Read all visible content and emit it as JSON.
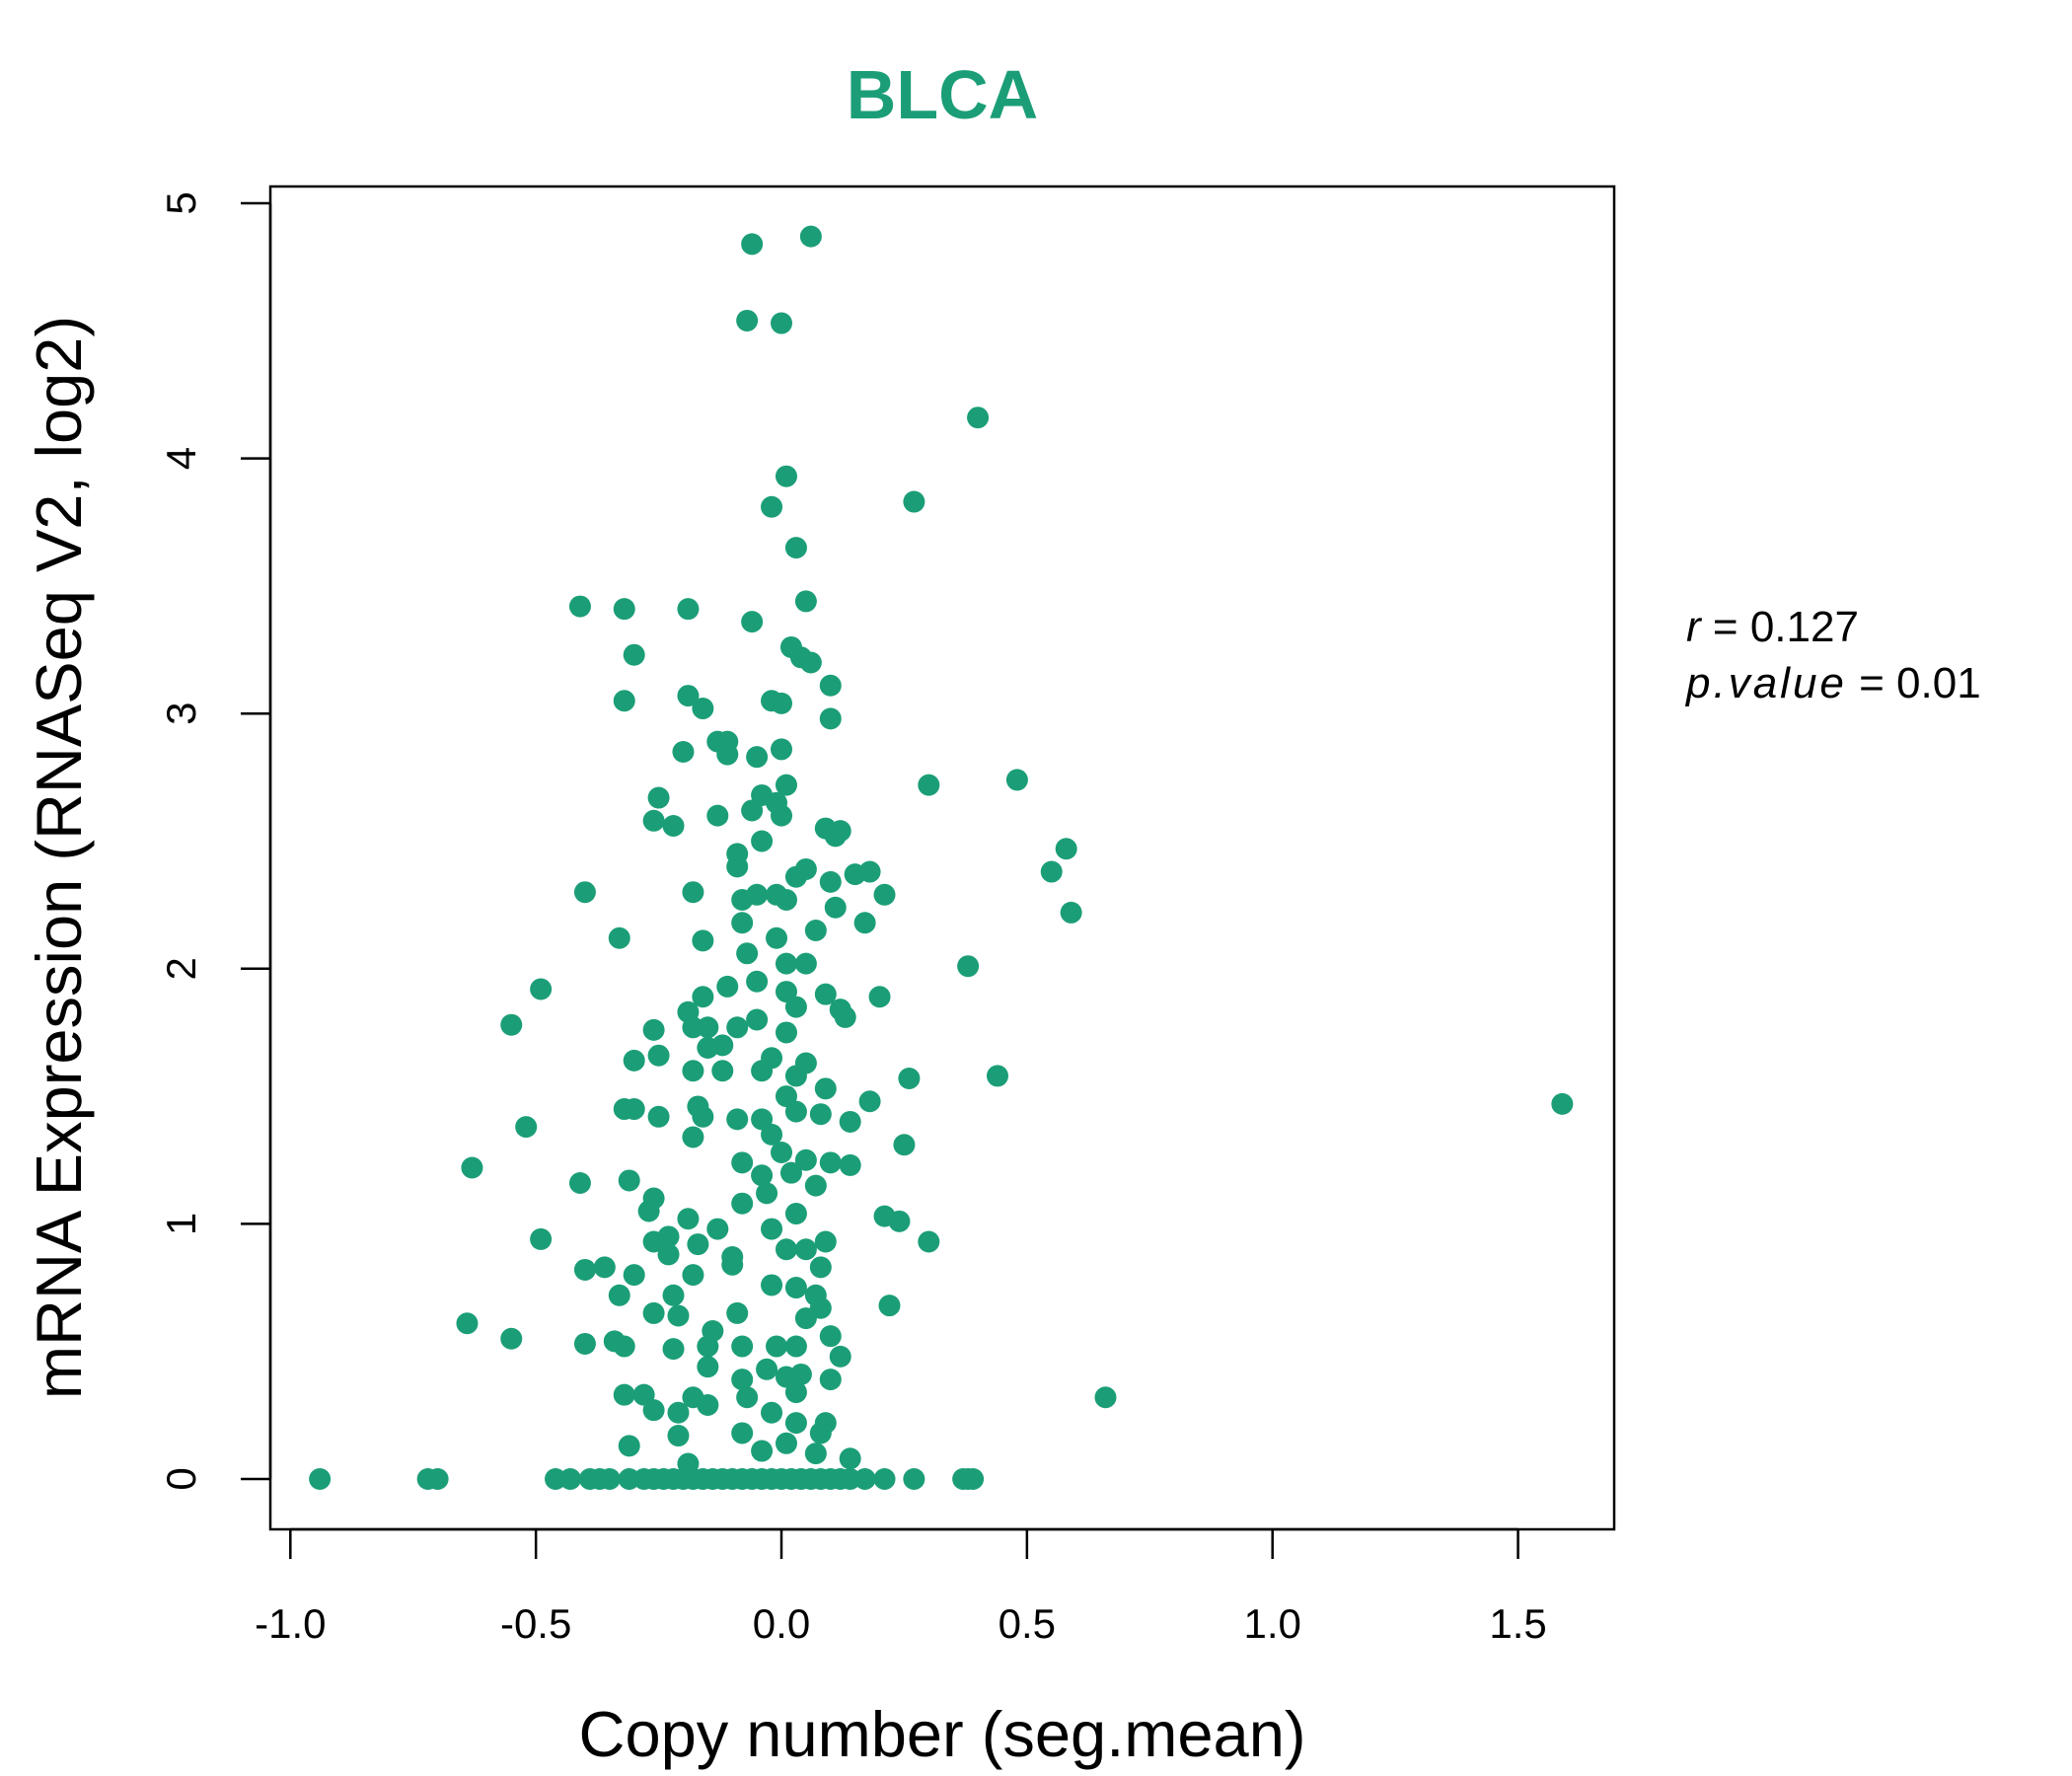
{
  "chart_data": {
    "type": "scatter",
    "title": "BLCA",
    "xlabel": "Copy number (seg.mean)",
    "ylabel": "mRNA Expression (RNASeq V2, log2)",
    "xlim": [
      -1.05,
      1.68
    ],
    "ylim": [
      -0.2,
      5.07
    ],
    "xticks": [
      -1.0,
      -0.5,
      0.0,
      0.5,
      1.0,
      1.5
    ],
    "xtick_labels": [
      "-1.0",
      "-0.5",
      "0.0",
      "0.5",
      "1.0",
      "1.5"
    ],
    "yticks": [
      0,
      1,
      2,
      3,
      4,
      5
    ],
    "ytick_labels": [
      "0",
      "1",
      "2",
      "3",
      "4",
      "5"
    ],
    "grid": false,
    "color": "#1b9e77",
    "stats": {
      "r_label": "r",
      "r_value": "0.127",
      "p_label": "p.value",
      "p_value": "0.01"
    },
    "points": [
      [
        -0.94,
        0
      ],
      [
        -0.72,
        0
      ],
      [
        -0.7,
        0
      ],
      [
        -0.63,
        1.22
      ],
      [
        -0.64,
        0.61
      ],
      [
        -0.55,
        1.78
      ],
      [
        -0.55,
        0.55
      ],
      [
        -0.52,
        1.38
      ],
      [
        -0.49,
        1.92
      ],
      [
        -0.49,
        0.94
      ],
      [
        -0.41,
        3.42
      ],
      [
        -0.41,
        1.16
      ],
      [
        -0.4,
        2.3
      ],
      [
        -0.4,
        0.82
      ],
      [
        -0.4,
        0.53
      ],
      [
        -0.36,
        0.83
      ],
      [
        -0.34,
        0.54
      ],
      [
        -0.33,
        2.12
      ],
      [
        -0.32,
        3.41
      ],
      [
        -0.32,
        3.05
      ],
      [
        -0.3,
        3.23
      ],
      [
        -0.33,
        0.72
      ],
      [
        -0.32,
        1.45
      ],
      [
        -0.3,
        1.45
      ],
      [
        -0.3,
        1.64
      ],
      [
        -0.31,
        1.17
      ],
      [
        -0.3,
        0.8
      ],
      [
        -0.32,
        0.52
      ],
      [
        -0.32,
        0.33
      ],
      [
        -0.31,
        0.13
      ],
      [
        -0.28,
        0.33
      ],
      [
        -0.26,
        2.58
      ],
      [
        -0.25,
        2.67
      ],
      [
        -0.26,
        1.76
      ],
      [
        -0.25,
        1.66
      ],
      [
        -0.25,
        1.42
      ],
      [
        -0.26,
        1.1
      ],
      [
        -0.27,
        1.05
      ],
      [
        -0.26,
        0.93
      ],
      [
        -0.26,
        0.65
      ],
      [
        -0.26,
        0.27
      ],
      [
        -0.23,
        0.95
      ],
      [
        -0.23,
        0.88
      ],
      [
        -0.22,
        0.72
      ],
      [
        -0.22,
        0.51
      ],
      [
        -0.21,
        0.64
      ],
      [
        -0.21,
        0.17
      ],
      [
        -0.21,
        0.26
      ],
      [
        -0.22,
        2.56
      ],
      [
        -0.2,
        2.85
      ],
      [
        -0.19,
        3.07
      ],
      [
        -0.19,
        3.41
      ],
      [
        -0.16,
        3.02
      ],
      [
        -0.19,
        1.83
      ],
      [
        -0.18,
        1.77
      ],
      [
        -0.18,
        1.6
      ],
      [
        -0.18,
        1.34
      ],
      [
        -0.17,
        1.46
      ],
      [
        -0.18,
        2.3
      ],
      [
        -0.16,
        2.11
      ],
      [
        -0.19,
        1.02
      ],
      [
        -0.18,
        0.8
      ],
      [
        -0.17,
        0.92
      ],
      [
        -0.16,
        1.89
      ],
      [
        -0.16,
        1.42
      ],
      [
        -0.15,
        1.77
      ],
      [
        -0.15,
        1.69
      ],
      [
        -0.14,
        0.58
      ],
      [
        -0.15,
        0.52
      ],
      [
        -0.15,
        0.44
      ],
      [
        -0.15,
        0.29
      ],
      [
        -0.18,
        0.32
      ],
      [
        -0.19,
        0.06
      ],
      [
        -0.13,
        2.6
      ],
      [
        -0.13,
        2.89
      ],
      [
        -0.11,
        2.84
      ],
      [
        -0.11,
        2.89
      ],
      [
        -0.12,
        1.7
      ],
      [
        -0.12,
        1.6
      ],
      [
        -0.11,
        1.93
      ],
      [
        -0.13,
        0.98
      ],
      [
        -0.1,
        0.87
      ],
      [
        -0.1,
        0.84
      ],
      [
        -0.09,
        2.45
      ],
      [
        -0.09,
        2.4
      ],
      [
        -0.08,
        2.27
      ],
      [
        -0.08,
        2.18
      ],
      [
        -0.07,
        2.06
      ],
      [
        -0.09,
        1.77
      ],
      [
        -0.09,
        1.41
      ],
      [
        -0.08,
        1.24
      ],
      [
        -0.08,
        1.08
      ],
      [
        -0.09,
        0.65
      ],
      [
        -0.08,
        0.52
      ],
      [
        -0.08,
        0.39
      ],
      [
        -0.08,
        0.18
      ],
      [
        -0.07,
        0.32
      ],
      [
        -0.07,
        4.54
      ],
      [
        -0.06,
        4.84
      ],
      [
        -0.06,
        3.36
      ],
      [
        -0.06,
        2.62
      ],
      [
        -0.05,
        2.83
      ],
      [
        -0.04,
        2.68
      ],
      [
        -0.04,
        2.5
      ],
      [
        -0.05,
        2.29
      ],
      [
        -0.05,
        1.95
      ],
      [
        -0.05,
        1.8
      ],
      [
        -0.04,
        1.6
      ],
      [
        -0.04,
        1.41
      ],
      [
        -0.04,
        1.19
      ],
      [
        -0.03,
        1.12
      ],
      [
        -0.03,
        0.43
      ],
      [
        -0.04,
        0.11
      ],
      [
        -0.02,
        3.81
      ],
      [
        -0.02,
        3.05
      ],
      [
        -0.01,
        2.65
      ],
      [
        -0.01,
        2.29
      ],
      [
        -0.01,
        2.12
      ],
      [
        -0.02,
        1.65
      ],
      [
        -0.02,
        1.35
      ],
      [
        -0.02,
        0.98
      ],
      [
        -0.02,
        0.76
      ],
      [
        -0.02,
        0.26
      ],
      [
        -0.01,
        0.52
      ],
      [
        0.0,
        4.53
      ],
      [
        0.01,
        3.93
      ],
      [
        0.0,
        3.04
      ],
      [
        0.01,
        2.72
      ],
      [
        0.0,
        2.86
      ],
      [
        0.0,
        2.6
      ],
      [
        0.01,
        2.27
      ],
      [
        0.01,
        2.02
      ],
      [
        0.01,
        1.91
      ],
      [
        0.01,
        1.75
      ],
      [
        0.01,
        1.5
      ],
      [
        0.0,
        1.28
      ],
      [
        0.01,
        0.9
      ],
      [
        0.01,
        0.4
      ],
      [
        0.01,
        0.14
      ],
      [
        0.02,
        3.26
      ],
      [
        0.03,
        3.65
      ],
      [
        0.03,
        2.36
      ],
      [
        0.03,
        1.85
      ],
      [
        0.03,
        1.58
      ],
      [
        0.03,
        1.44
      ],
      [
        0.02,
        1.2
      ],
      [
        0.03,
        1.04
      ],
      [
        0.03,
        0.75
      ],
      [
        0.03,
        0.52
      ],
      [
        0.03,
        0.34
      ],
      [
        0.03,
        0.22
      ],
      [
        0.04,
        3.22
      ],
      [
        0.05,
        3.44
      ],
      [
        0.05,
        2.39
      ],
      [
        0.05,
        2.02
      ],
      [
        0.05,
        1.63
      ],
      [
        0.05,
        1.25
      ],
      [
        0.05,
        0.9
      ],
      [
        0.05,
        0.63
      ],
      [
        0.04,
        0.41
      ],
      [
        0.06,
        4.87
      ],
      [
        0.06,
        3.2
      ],
      [
        0.07,
        2.15
      ],
      [
        0.07,
        1.15
      ],
      [
        0.07,
        0.72
      ],
      [
        0.07,
        0.1
      ],
      [
        0.08,
        1.43
      ],
      [
        0.08,
        0.83
      ],
      [
        0.08,
        0.67
      ],
      [
        0.08,
        0.18
      ],
      [
        0.09,
        2.55
      ],
      [
        0.09,
        1.9
      ],
      [
        0.09,
        1.53
      ],
      [
        0.09,
        0.93
      ],
      [
        0.09,
        0.22
      ],
      [
        0.1,
        3.11
      ],
      [
        0.1,
        2.98
      ],
      [
        0.1,
        2.34
      ],
      [
        0.1,
        1.24
      ],
      [
        0.1,
        0.56
      ],
      [
        0.1,
        0.39
      ],
      [
        0.11,
        2.24
      ],
      [
        0.11,
        2.52
      ],
      [
        0.12,
        2.54
      ],
      [
        0.12,
        1.84
      ],
      [
        0.13,
        1.81
      ],
      [
        0.12,
        0.48
      ],
      [
        0.14,
        1.4
      ],
      [
        0.14,
        1.23
      ],
      [
        0.14,
        0.08
      ],
      [
        0.15,
        2.37
      ],
      [
        0.17,
        2.18
      ],
      [
        0.18,
        2.38
      ],
      [
        0.18,
        1.48
      ],
      [
        0.2,
        1.89
      ],
      [
        0.21,
        2.29
      ],
      [
        0.21,
        1.03
      ],
      [
        0.22,
        0.68
      ],
      [
        0.24,
        1.01
      ],
      [
        0.25,
        1.31
      ],
      [
        0.26,
        1.57
      ],
      [
        0.27,
        3.83
      ],
      [
        0.3,
        2.72
      ],
      [
        0.3,
        0.93
      ],
      [
        0.38,
        2.01
      ],
      [
        0.4,
        4.16
      ],
      [
        0.44,
        1.58
      ],
      [
        0.48,
        2.74
      ],
      [
        0.55,
        2.38
      ],
      [
        0.58,
        2.47
      ],
      [
        0.59,
        2.22
      ],
      [
        0.66,
        0.32
      ],
      [
        1.59,
        1.47
      ],
      [
        -0.46,
        0
      ],
      [
        -0.43,
        0
      ],
      [
        -0.39,
        0
      ],
      [
        -0.37,
        0
      ],
      [
        -0.35,
        0
      ],
      [
        -0.31,
        0
      ],
      [
        -0.28,
        0
      ],
      [
        -0.26,
        0
      ],
      [
        -0.24,
        0
      ],
      [
        -0.22,
        0
      ],
      [
        -0.2,
        0
      ],
      [
        -0.18,
        0
      ],
      [
        -0.16,
        0
      ],
      [
        -0.14,
        0
      ],
      [
        -0.12,
        0
      ],
      [
        -0.1,
        0
      ],
      [
        -0.08,
        0
      ],
      [
        -0.06,
        0
      ],
      [
        -0.04,
        0
      ],
      [
        -0.02,
        0
      ],
      [
        0.0,
        0
      ],
      [
        0.02,
        0
      ],
      [
        0.04,
        0
      ],
      [
        0.06,
        0
      ],
      [
        0.08,
        0
      ],
      [
        0.1,
        0
      ],
      [
        0.12,
        0
      ],
      [
        0.14,
        0
      ],
      [
        0.17,
        0
      ],
      [
        0.21,
        0
      ],
      [
        0.27,
        0
      ],
      [
        0.37,
        0
      ],
      [
        0.38,
        0
      ],
      [
        0.39,
        0
      ]
    ]
  }
}
